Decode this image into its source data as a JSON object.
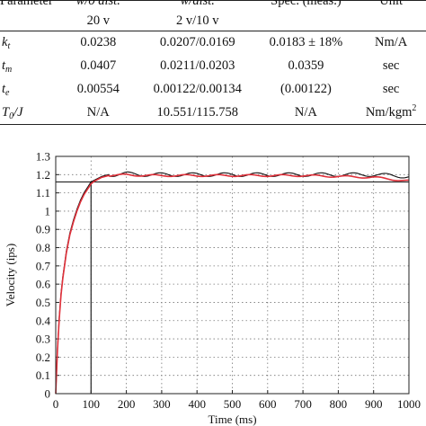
{
  "table": {
    "headers": {
      "param": "Parameter",
      "c1_line1": "w/o dist.",
      "c1_line2": "20 v",
      "c2_line1": "w/dist.",
      "c2_line2": "2 v/10 v",
      "spec": "Spec. (meas.)",
      "unit": "Unit"
    },
    "rows": [
      {
        "sym": "k",
        "sub": "t",
        "sup": "",
        "c1": "0.0238",
        "c2": "0.0207/0.0169",
        "spec": "0.0183 ± 18%",
        "unit": "Nm/A",
        "unit_sup": ""
      },
      {
        "sym": "t",
        "sub": "m",
        "sup": "",
        "c1": "0.0407",
        "c2": "0.0211/0.0203",
        "spec": "0.0359",
        "unit": "sec",
        "unit_sup": ""
      },
      {
        "sym": "t",
        "sub": "e",
        "sup": "",
        "c1": "0.00554",
        "c2": "0.00122/0.00134",
        "spec": "(0.00122)",
        "unit": "sec",
        "unit_sup": ""
      },
      {
        "sym": "T",
        "sub": "0",
        "sup": "/J",
        "c1": "N/A",
        "c2": "10.551/115.758",
        "spec": "N/A",
        "unit": "Nm/kgm",
        "unit_sup": "2"
      }
    ]
  },
  "chart_data": {
    "type": "line",
    "xlabel": "Time (ms)",
    "ylabel": "Velocity (ips)",
    "xlim": [
      0,
      1000
    ],
    "ylim": [
      0,
      1.3
    ],
    "xticks": [
      0,
      100,
      200,
      300,
      400,
      500,
      600,
      700,
      800,
      900,
      1000
    ],
    "yticks": [
      0,
      0.1,
      0.2,
      0.3,
      0.4,
      0.5,
      0.6,
      0.7,
      0.8,
      0.9,
      1,
      1.1,
      1.2,
      1.3
    ],
    "ytick_labels": [
      "0",
      "0.1",
      "0.2",
      "0.3",
      "0.4",
      "0.5",
      "0.6",
      "0.7",
      "0.8",
      "0.9",
      "1",
      "1.1",
      "1.2",
      "1.3"
    ],
    "grid": "dotted",
    "reference_lines": {
      "x": 100,
      "y": 1.16
    },
    "series": [
      {
        "color": "#111111",
        "x": [
          0,
          5,
          10,
          15,
          20,
          25,
          30,
          40,
          50,
          60,
          70,
          80,
          90,
          100,
          110,
          120,
          130,
          140,
          150,
          170,
          200,
          250,
          300,
          400,
          500,
          600,
          700,
          800,
          900,
          1000
        ],
        "values": [
          0,
          0.25,
          0.42,
          0.55,
          0.64,
          0.71,
          0.78,
          0.88,
          0.95,
          1.01,
          1.06,
          1.1,
          1.13,
          1.16,
          1.17,
          1.18,
          1.19,
          1.195,
          1.2,
          1.2,
          1.205,
          1.2,
          1.2,
          1.2,
          1.2,
          1.2,
          1.2,
          1.2,
          1.2,
          1.19
        ],
        "ripple": 0.01
      },
      {
        "color": "#e0303a",
        "x": [
          0,
          5,
          10,
          15,
          20,
          25,
          30,
          40,
          50,
          60,
          70,
          80,
          90,
          100,
          110,
          120,
          130,
          140,
          150,
          170,
          200,
          250,
          300,
          400,
          500,
          600,
          700,
          800,
          900,
          950,
          1000
        ],
        "values": [
          0,
          0.24,
          0.41,
          0.54,
          0.63,
          0.7,
          0.77,
          0.87,
          0.94,
          1.0,
          1.05,
          1.09,
          1.12,
          1.15,
          1.165,
          1.175,
          1.185,
          1.19,
          1.195,
          1.195,
          1.2,
          1.195,
          1.195,
          1.195,
          1.195,
          1.195,
          1.195,
          1.19,
          1.185,
          1.175,
          1.165
        ],
        "ripple": 0.005
      }
    ]
  }
}
